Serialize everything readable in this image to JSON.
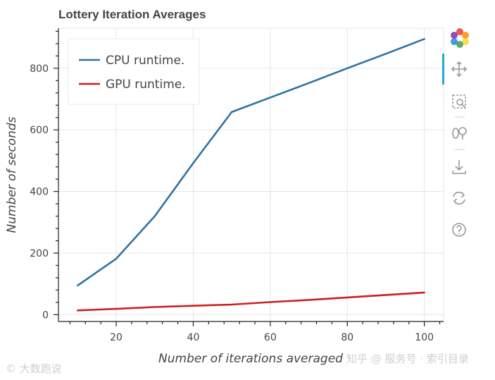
{
  "chart_data": {
    "type": "line",
    "title": "Lottery Iteration Averages",
    "xlabel": "Number of iterations averaged",
    "ylabel": "Number of seconds",
    "xlim": [
      5,
      105
    ],
    "ylim": [
      -22,
      930
    ],
    "x_ticks": [
      20,
      40,
      60,
      80,
      100
    ],
    "y_ticks": [
      0,
      200,
      400,
      600,
      800
    ],
    "x_minor_step": 4,
    "y_minor_step": 40,
    "grid": true,
    "legend_position": "top-left",
    "series": [
      {
        "name": "CPU runtime.",
        "color": "#2f73a0",
        "x": [
          10,
          20,
          30,
          40,
          50,
          60,
          70,
          80,
          90,
          100
        ],
        "y": [
          95,
          182,
          320,
          492,
          658,
          705,
          752,
          800,
          847,
          895
        ]
      },
      {
        "name": "GPU runtime.",
        "color": "#cc1f1f",
        "x": [
          10,
          20,
          30,
          40,
          50,
          60,
          70,
          80,
          90,
          100
        ],
        "y": [
          14,
          19,
          25,
          29,
          33,
          41,
          48,
          56,
          64,
          72
        ]
      }
    ]
  },
  "toolbar": {
    "logo": "bokeh-logo-icon",
    "tools": [
      "pan-icon",
      "box-zoom-icon",
      "wheel-zoom-icon",
      "save-icon",
      "reset-icon",
      "help-icon"
    ]
  },
  "watermarks": {
    "bottom_left": "© 大数跑说",
    "bottom_right": "知乎 @ 服务号 · 索引目录"
  }
}
